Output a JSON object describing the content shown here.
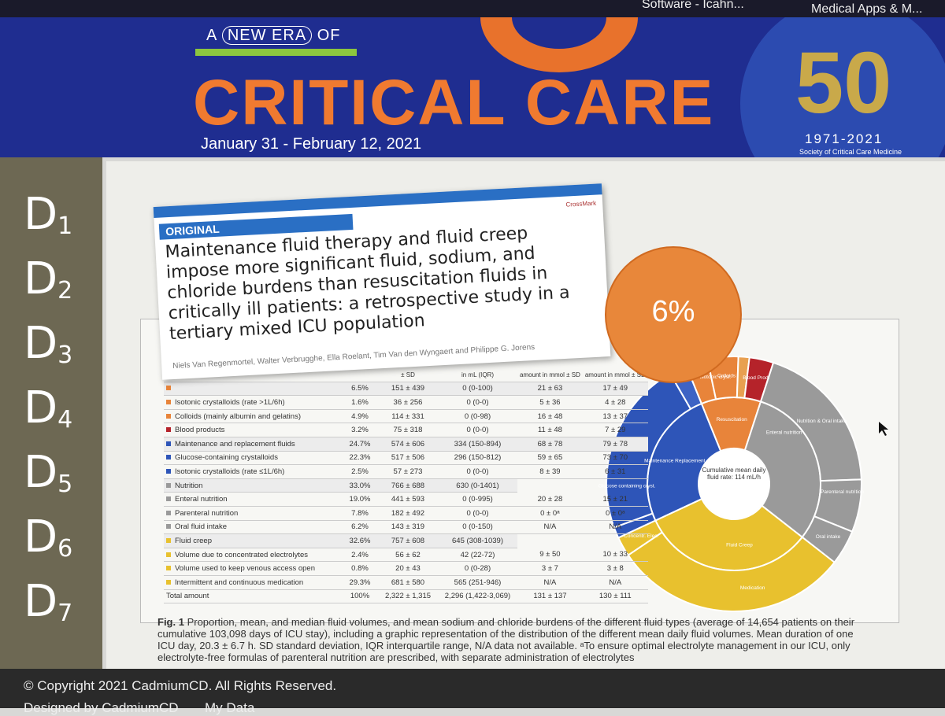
{
  "browser_tabs": [
    "Software - Icahn...",
    "Medical Apps & M..."
  ],
  "banner": {
    "kicker_parts": [
      "A",
      "NEW ERA",
      "OF"
    ],
    "title": "CRITICAL CARE",
    "dates": "January 31 - February 12, 2021",
    "logo_number": "50",
    "logo_years": "1971-2021",
    "logo_org": "Society of Critical Care Medicine"
  },
  "sidebar": [
    {
      "letter": "D",
      "index": "1"
    },
    {
      "letter": "D",
      "index": "2"
    },
    {
      "letter": "D",
      "index": "3"
    },
    {
      "letter": "D",
      "index": "4"
    },
    {
      "letter": "D",
      "index": "5"
    },
    {
      "letter": "D",
      "index": "6"
    },
    {
      "letter": "D",
      "index": "7"
    }
  ],
  "article": {
    "label": "ORIGINAL",
    "crossmark": "CrossMark",
    "title": "Maintenance fluid therapy and fluid creep impose more significant fluid, sodium, and chloride burdens than resuscitation fluids in critically ill patients: a retrospective study in a tertiary mixed ICU population",
    "authors": "Niels Van Regenmortel, Walter Verbrugghe, Ella Roelant, Tim Van den Wyngaert and Philippe G. Jorens"
  },
  "table": {
    "headers": [
      "± SD",
      "in mL (IQR)",
      "amount in mmol ± SD",
      "amount in mmol ± SD"
    ],
    "rows": [
      [
        "",
        "6.5%",
        "151 ± 439",
        "0 (0-100)",
        "21 ± 63",
        "17 ± 49"
      ],
      [
        "Isotonic crystalloids (rate >1L/6h)",
        "1.6%",
        "36 ± 256",
        "0 (0-0)",
        "5 ± 36",
        "4 ± 28"
      ],
      [
        "Colloids (mainly albumin and gelatins)",
        "4.9%",
        "114 ± 331",
        "0 (0-98)",
        "16 ± 48",
        "13 ± 37"
      ],
      [
        "Blood products",
        "3.2%",
        "75 ± 318",
        "0 (0-0)",
        "11 ± 48",
        "7 ± 29"
      ],
      [
        "Maintenance and replacement fluids",
        "24.7%",
        "574 ± 606",
        "334 (150-894)",
        "68 ± 78",
        "79 ± 78"
      ],
      [
        "Glucose-containing crystalloids",
        "22.3%",
        "517 ± 506",
        "296 (150-812)",
        "59 ± 65",
        "73 ± 70"
      ],
      [
        "Isotonic crystalloids (rate ≤1L/6h)",
        "2.5%",
        "57 ± 273",
        "0 (0-0)",
        "8 ± 39",
        "6 ± 31"
      ],
      [
        "Nutrition",
        "33.0%",
        "766 ± 688",
        "630 (0-1401)"
      ],
      [
        "Enteral nutrition",
        "19.0%",
        "441 ± 593",
        "0 (0-995)",
        "20 ± 28",
        "15 ± 21"
      ],
      [
        "Parenteral nutrition",
        "7.8%",
        "182 ± 492",
        "0 (0-0)",
        "0 ± 0ᵃ",
        "0 ± 0ᵃ"
      ],
      [
        "Oral fluid intake",
        "6.2%",
        "143 ± 319",
        "0 (0-150)",
        "N/A",
        "N/A"
      ],
      [
        "Fluid creep",
        "32.6%",
        "757 ± 608",
        "645 (308-1039)"
      ],
      [
        "Volume due to concentrated electrolytes",
        "2.4%",
        "56 ± 62",
        "42 (22-72)",
        "9 ± 50",
        "10 ± 33"
      ],
      [
        "Volume used to keep venous access open",
        "0.8%",
        "20 ± 43",
        "0 (0-28)",
        "3 ± 7",
        "3 ± 8"
      ],
      [
        "Intermittent and continuous medication",
        "29.3%",
        "681 ± 580",
        "565 (251-946)",
        "N/A",
        "N/A"
      ],
      [
        "Total amount",
        "100%",
        "2,322 ± 1,315",
        "2,296 (1,422-3,069)",
        "131 ± 137",
        "130 ± 111"
      ]
    ]
  },
  "chart_labels": {
    "center": "Cumulative mean daily fluid rate: 114 mL/h",
    "segments": [
      "Glucose containing cryst.",
      "Maintenance Replacement",
      "Nutrition & Oral intake",
      "Enteral nutrition",
      "Parenteral nutrition",
      "Oral intake",
      "Fluid Creep",
      "Medication",
      "Concentr. Elec.",
      "Isotonic cryst.",
      "Colloids",
      "Resuscitation",
      "Blood Prod."
    ]
  },
  "badge": "6%",
  "caption": {
    "label": "Fig. 1",
    "text": "Proportion, mean, and median fluid volumes, and mean sodium and chloride burdens of the different fluid types (average of 14,654 patients on their cumulative 103,098 days of ICU stay), including a graphic representation of the distribution of the different mean daily fluid volumes. Mean duration of one ICU day, 20.3 ± 6.7 h. SD standard deviation, IQR interquartile range, N/A data not available. ᵃTo ensure optimal electrolyte management in our ICU, only electrolyte-free formulas of parenteral nutrition are prescribed, with separate administration of electrolytes"
  },
  "footer": {
    "copyright": "© Copyright 2021 CadmiumCD. All Rights Reserved.",
    "links": [
      "Designed by CadmiumCD",
      "My Data"
    ]
  }
}
